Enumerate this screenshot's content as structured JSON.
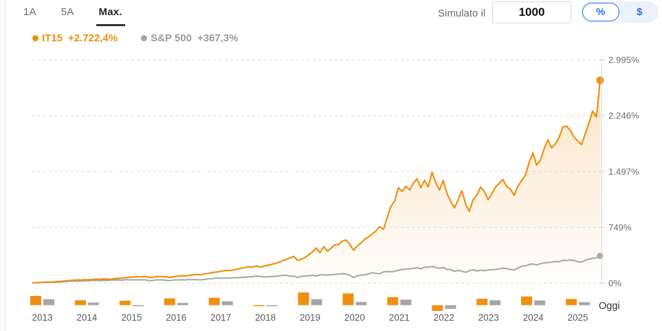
{
  "header": {
    "tabs": [
      {
        "label": "1A",
        "active": false
      },
      {
        "label": "5A",
        "active": false
      },
      {
        "label": "Max.",
        "active": true
      }
    ],
    "simulated_label": "Simulato il",
    "amount_value": "1000",
    "unit_toggle": {
      "percent_label": "%",
      "dollar_label": "$",
      "selected": "percent"
    }
  },
  "legend": {
    "series": [
      {
        "name": "IT15",
        "change": "+2.722,4%",
        "color": "#ee9011"
      },
      {
        "name": "S&P 500",
        "change": "+367,3%",
        "color": "#a6a6a6"
      }
    ]
  },
  "axis": {
    "today_label": "Oggi"
  },
  "colors": {
    "accent_orange": "#ee9011",
    "neutral_gray": "#a6a6a6",
    "blue": "#2272f5",
    "grid": "#dedede",
    "axis_line": "#cfcfcf",
    "tick_text": "#6e6e6e",
    "year_text": "#5a5a5a"
  },
  "chart_data": {
    "type": "line",
    "title": "IT15 vs S&P 500 cumulative performance, range Max. (2013 - Oggi), simulato il 1000, in %",
    "x_unit": "month",
    "x_start": "2013-01",
    "x_end": "Oggi",
    "ylim": [
      0,
      2995
    ],
    "grid": "dashed horizontal",
    "legend_position": "top-left",
    "yticks": [
      {
        "label": "2.995%",
        "value": 2995
      },
      {
        "label": "2.246%",
        "value": 2246
      },
      {
        "label": "1.497%",
        "value": 1497
      },
      {
        "label": "749%",
        "value": 749
      },
      {
        "label": "0%",
        "value": 0
      }
    ],
    "series": [
      {
        "name": "IT15",
        "color": "#ee9011",
        "final_change": "+2.722,4%",
        "values": [
          3,
          6,
          9,
          12,
          15,
          13,
          18,
          22,
          26,
          30,
          35,
          40,
          44,
          41,
          47,
          45,
          50,
          54,
          52,
          57,
          55,
          52,
          60,
          65,
          68,
          74,
          79,
          83,
          88,
          84,
          92,
          80,
          76,
          86,
          90,
          88,
          82,
          76,
          88,
          95,
          100,
          96,
          106,
          112,
          116,
          112,
          122,
          132,
          140,
          148,
          155,
          163,
          172,
          168,
          180,
          190,
          200,
          210,
          220,
          215,
          230,
          215,
          228,
          240,
          252,
          266,
          280,
          300,
          320,
          340,
          360,
          306,
          320,
          345,
          380,
          420,
          472,
          408,
          490,
          430,
          470,
          515,
          520,
          565,
          580,
          520,
          443,
          500,
          540,
          590,
          620,
          660,
          700,
          760,
          722,
          880,
          1030,
          1100,
          1280,
          1230,
          1300,
          1250,
          1340,
          1400,
          1280,
          1380,
          1290,
          1490,
          1350,
          1250,
          1380,
          1200,
          1100,
          1010,
          1120,
          1240,
          1060,
          963,
          1120,
          1180,
          1290,
          1230,
          1120,
          1200,
          1290,
          1340,
          1390,
          1300,
          1260,
          1180,
          1300,
          1380,
          1450,
          1620,
          1750,
          1583,
          1650,
          1800,
          1922,
          1815,
          1870,
          1950,
          2092,
          2107,
          2050,
          1960,
          1907,
          1860,
          2000,
          2150,
          2307,
          2230,
          2722
        ]
      },
      {
        "name": "S&P 500",
        "color": "#a6a6a6",
        "final_change": "+367,3%",
        "values": [
          5,
          6,
          9,
          11,
          13,
          12,
          17,
          14,
          17,
          22,
          25,
          29,
          25,
          30,
          31,
          32,
          34,
          36,
          33,
          38,
          36,
          39,
          42,
          44,
          40,
          47,
          44,
          45,
          46,
          43,
          46,
          37,
          33,
          44,
          44,
          43,
          36,
          35,
          43,
          44,
          46,
          43,
          49,
          49,
          48,
          45,
          50,
          57,
          60,
          66,
          66,
          67,
          69,
          70,
          73,
          73,
          76,
          80,
          85,
          87,
          97,
          90,
          85,
          86,
          90,
          91,
          98,
          104,
          106,
          92,
          95,
          76,
          90,
          96,
          99,
          106,
          97,
          111,
          113,
          109,
          113,
          117,
          124,
          127,
          125,
          105,
          77,
          100,
          108,
          112,
          124,
          140,
          132,
          126,
          150,
          157,
          152,
          160,
          172,
          185,
          186,
          192,
          198,
          208,
          194,
          214,
          212,
          226,
          208,
          200,
          210,
          185,
          183,
          159,
          172,
          160,
          146,
          165,
          180,
          163,
          175,
          168,
          177,
          181,
          182,
          192,
          201,
          196,
          183,
          177,
          202,
          227,
          232,
          249,
          258,
          244,
          261,
          272,
          276,
          283,
          291,
          287,
          307,
          303,
          312,
          306,
          286,
          283,
          306,
          324,
          332,
          340,
          367
        ]
      }
    ],
    "annual_bars": {
      "years": [
        2013,
        2014,
        2015,
        2016,
        2017,
        2018,
        2019,
        2020,
        2021,
        2022,
        2023,
        2024,
        2025
      ],
      "IT15": [
        45,
        24,
        22,
        33,
        36,
        -1,
        62,
        57,
        39,
        -28,
        31,
        42,
        30
      ],
      "SP500": [
        29,
        13,
        -1,
        11,
        19,
        -5,
        29,
        16,
        27,
        -18,
        24,
        23,
        15
      ]
    }
  }
}
